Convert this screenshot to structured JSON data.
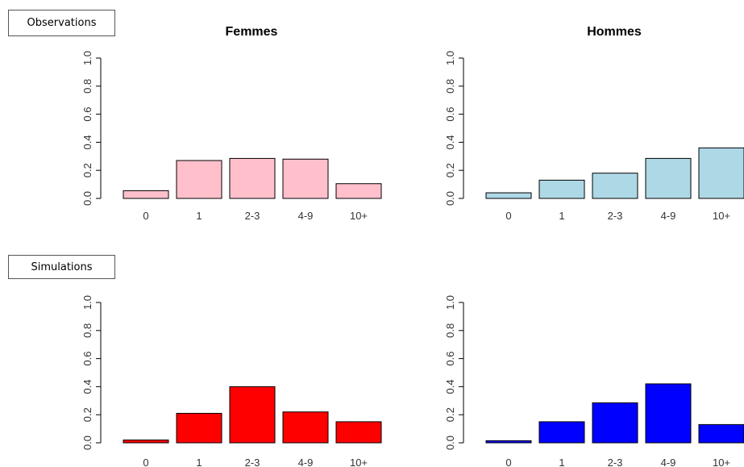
{
  "labels": {
    "observations": "Observations",
    "simulations": "Simulations"
  },
  "chart_data": [
    {
      "type": "bar",
      "title": "Femmes",
      "xlabel": "",
      "ylabel": "",
      "categories": [
        "0",
        "1",
        "2-3",
        "4-9",
        "10+"
      ],
      "values": [
        0.055,
        0.27,
        0.285,
        0.28,
        0.105
      ],
      "ylim": [
        0,
        1
      ],
      "yticks": [
        "0.0",
        "0.2",
        "0.4",
        "0.6",
        "0.8",
        "1.0"
      ],
      "color": "#ffc0cb"
    },
    {
      "type": "bar",
      "title": "Hommes",
      "xlabel": "",
      "ylabel": "",
      "categories": [
        "0",
        "1",
        "2-3",
        "4-9",
        "10+"
      ],
      "values": [
        0.04,
        0.13,
        0.18,
        0.285,
        0.36
      ],
      "ylim": [
        0,
        1
      ],
      "yticks": [
        "0.0",
        "0.2",
        "0.4",
        "0.6",
        "0.8",
        "1.0"
      ],
      "color": "#add8e6"
    },
    {
      "type": "bar",
      "title": "",
      "xlabel": "",
      "ylabel": "",
      "categories": [
        "0",
        "1",
        "2-3",
        "4-9",
        "10+"
      ],
      "values": [
        0.02,
        0.21,
        0.4,
        0.22,
        0.15
      ],
      "ylim": [
        0,
        1
      ],
      "yticks": [
        "0.0",
        "0.2",
        "0.4",
        "0.6",
        "0.8",
        "1.0"
      ],
      "color": "#ff0000"
    },
    {
      "type": "bar",
      "title": "",
      "xlabel": "",
      "ylabel": "",
      "categories": [
        "0",
        "1",
        "2-3",
        "4-9",
        "10+"
      ],
      "values": [
        0.015,
        0.15,
        0.285,
        0.42,
        0.13
      ],
      "ylim": [
        0,
        1
      ],
      "yticks": [
        "0.0",
        "0.2",
        "0.4",
        "0.6",
        "0.8",
        "1.0"
      ],
      "color": "#0000ff"
    }
  ]
}
